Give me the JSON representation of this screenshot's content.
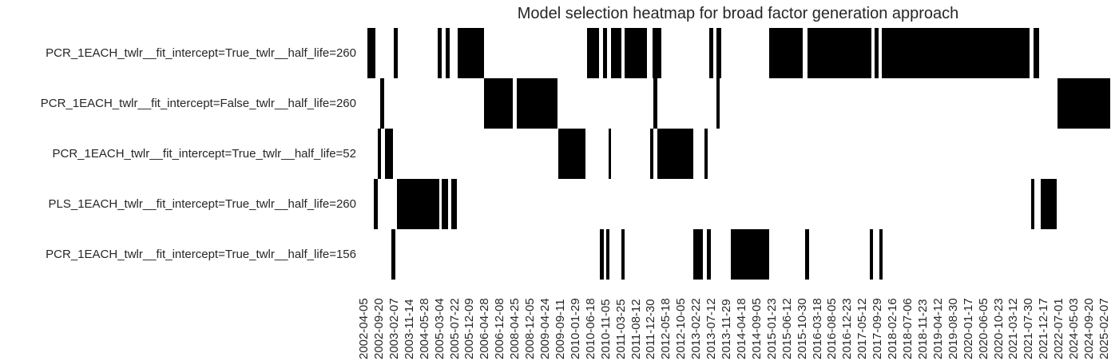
{
  "chart_data": {
    "type": "heatmap",
    "title": "Model selection heatmap for broad factor generation approach",
    "legend": "none",
    "grid": false,
    "x_tick_rotation": 90,
    "colors": {
      "on": "#000000",
      "off": "#ffffff",
      "text": "#262626"
    },
    "x_tick_labels": [
      "2002-04-05",
      "2002-09-20",
      "2003-02-07",
      "2003-11-14",
      "2004-05-28",
      "2005-03-04",
      "2005-07-22",
      "2005-12-09",
      "2006-04-28",
      "2006-12-08",
      "2008-04-25",
      "2008-12-05",
      "2009-04-24",
      "2009-09-11",
      "2010-01-29",
      "2010-06-18",
      "2010-11-05",
      "2011-03-25",
      "2011-08-12",
      "2011-12-30",
      "2012-05-18",
      "2012-10-05",
      "2013-02-22",
      "2013-07-12",
      "2013-11-29",
      "2014-04-18",
      "2014-09-05",
      "2015-01-23",
      "2015-06-12",
      "2015-10-30",
      "2016-03-18",
      "2016-08-05",
      "2016-12-23",
      "2017-05-12",
      "2017-09-29",
      "2018-02-16",
      "2018-07-06",
      "2018-11-23",
      "2019-04-12",
      "2019-08-30",
      "2020-01-17",
      "2020-06-05",
      "2020-10-23",
      "2021-03-12",
      "2021-07-30",
      "2021-12-17",
      "2022-07-01",
      "2024-05-03",
      "2024-09-20",
      "2025-02-07"
    ],
    "rows": [
      {
        "label": "PCR_1EACH_twlr__fit_intercept=True_twlr__half_life=260",
        "segments": [
          [
            0.0053,
            0.016
          ],
          [
            0.0405,
            0.0458
          ],
          [
            0.0991,
            0.1045
          ],
          [
            0.1098,
            0.1151
          ],
          [
            0.1258,
            0.161
          ],
          [
            0.2985,
            0.3145
          ],
          [
            0.3198,
            0.3252
          ],
          [
            0.3305,
            0.3443
          ],
          [
            0.3486,
            0.3785
          ],
          [
            0.3859,
            0.3977
          ],
          [
            0.4616,
            0.467
          ],
          [
            0.4712,
            0.4776
          ],
          [
            0.5416,
            0.5864
          ],
          [
            0.5928,
            0.6781
          ],
          [
            0.6823,
            0.6877
          ],
          [
            0.6919,
            0.8891
          ],
          [
            0.8945,
            0.9019
          ]
        ]
      },
      {
        "label": "PCR_1EACH_twlr__fit_intercept=False_twlr__half_life=260",
        "segments": [
          [
            0.0224,
            0.0277
          ],
          [
            0.161,
            0.1994
          ],
          [
            0.2047,
            0.2591
          ],
          [
            0.387,
            0.3923
          ],
          [
            0.4712,
            0.4755
          ],
          [
            0.9264,
            0.9968
          ]
        ]
      },
      {
        "label": "PCR_1EACH_twlr__fit_intercept=True_twlr__half_life=52",
        "segments": [
          [
            0.0192,
            0.0235
          ],
          [
            0.0288,
            0.0394
          ],
          [
            0.2601,
            0.2964
          ],
          [
            0.3273,
            0.3305
          ],
          [
            0.3827,
            0.387
          ],
          [
            0.3923,
            0.4403
          ],
          [
            0.4552,
            0.4595
          ]
        ]
      },
      {
        "label": "PLS_1EACH_twlr__fit_intercept=True_twlr__half_life=260",
        "segments": [
          [
            0.0139,
            0.0192
          ],
          [
            0.0448,
            0.1013
          ],
          [
            0.1045,
            0.113
          ],
          [
            0.1173,
            0.1247
          ],
          [
            0.8913,
            0.8955
          ],
          [
            0.9041,
            0.9254
          ]
        ]
      },
      {
        "label": "PCR_1EACH_twlr__fit_intercept=True_twlr__half_life=156",
        "segments": [
          [
            0.0373,
            0.0426
          ],
          [
            0.3156,
            0.3209
          ],
          [
            0.3241,
            0.3284
          ],
          [
            0.3443,
            0.3486
          ],
          [
            0.4403,
            0.4531
          ],
          [
            0.4584,
            0.4638
          ],
          [
            0.4904,
            0.5416
          ],
          [
            0.5896,
            0.5949
          ],
          [
            0.6759,
            0.6802
          ],
          [
            0.6887,
            0.693
          ]
        ]
      }
    ]
  }
}
